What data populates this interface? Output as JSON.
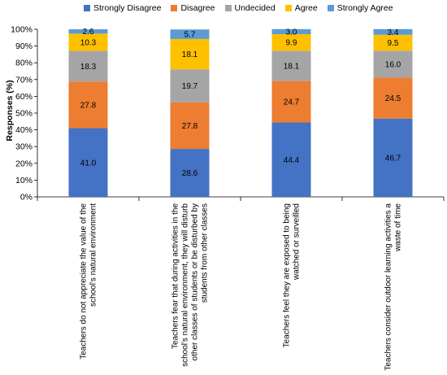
{
  "chart_data": {
    "type": "bar",
    "stacked": true,
    "ylabel": "Responses (%)",
    "ylim": [
      0,
      100
    ],
    "yticks": [
      "0%",
      "10%",
      "20%",
      "30%",
      "40%",
      "50%",
      "60%",
      "70%",
      "80%",
      "90%",
      "100%"
    ],
    "legend_position": "top",
    "grid": false,
    "categories": [
      "Teachers do not appreciate the value of the school's natural environment",
      "Teachers fear that during activities in the school's natural environment, they will disturb other classes of students or be disturbed by students from other classes",
      "Teachers feel they are exposed to being watched or surveilled",
      "Teachers consider outdoor learning activities a waste of time"
    ],
    "category_lines": [
      [
        "Teachers do not appreciate the value of the",
        "school's natural environment"
      ],
      [
        "Teachers fear that during activities in the",
        "school's natural environment, they will disturb",
        "other classes of students or be disturbed by",
        "students from other classes"
      ],
      [
        "Teachers feel they are exposed to being",
        "watched or surveilled"
      ],
      [
        "Teachers consider outdoor learning activities a",
        "waste of time"
      ]
    ],
    "series": [
      {
        "name": "Strongly Disagree",
        "color": "#4472C4",
        "values": [
          41.0,
          28.6,
          44.4,
          46.7
        ],
        "labels": [
          "41.0",
          "28.6",
          "44.4",
          "46.7"
        ]
      },
      {
        "name": "Disagree",
        "color": "#ED7D31",
        "values": [
          27.8,
          27.8,
          24.7,
          24.5
        ],
        "labels": [
          "27.8",
          "27.8",
          "24.7",
          "24.5"
        ]
      },
      {
        "name": "Undecided",
        "color": "#A5A5A5",
        "values": [
          18.3,
          19.7,
          18.1,
          16.0
        ],
        "labels": [
          "18.3",
          "19.7",
          "18.1",
          "16.0"
        ]
      },
      {
        "name": "Agree",
        "color": "#FFC000",
        "values": [
          10.3,
          18.1,
          9.9,
          9.5
        ],
        "labels": [
          "10.3",
          "18.1",
          "9.9",
          "9.5"
        ]
      },
      {
        "name": "Strongly Agree",
        "color": "#5B9BD5",
        "values": [
          2.6,
          5.7,
          3.0,
          3.4
        ],
        "labels": [
          "2.6",
          "5.7",
          "3.0",
          "3.4"
        ]
      }
    ]
  }
}
